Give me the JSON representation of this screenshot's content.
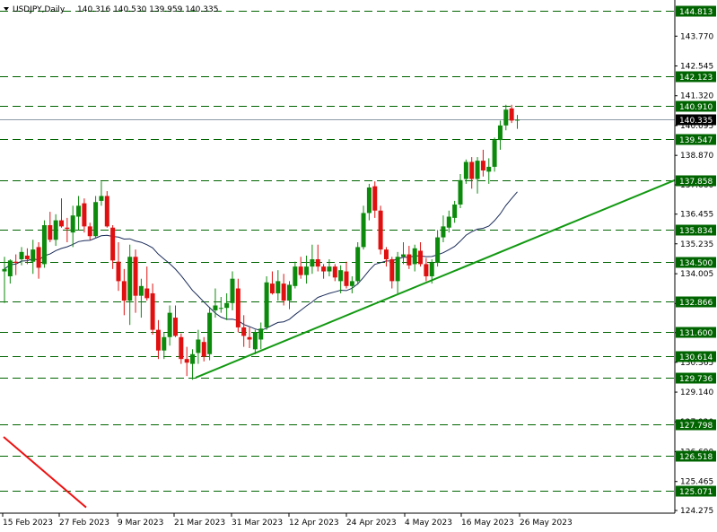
{
  "chart_data": {
    "type": "candlestick",
    "symbol_label": "USDJPY,Daily",
    "ohlc_label": "140.316 140.530 139.959 140.335",
    "y_ticks": [
      "143.770",
      "142.545",
      "141.320",
      "140.095",
      "138.870",
      "137.660",
      "136.455",
      "135.235",
      "134.005",
      "132.780",
      "131.585",
      "130.365",
      "129.140",
      "127.920",
      "126.690",
      "125.465",
      "124.275"
    ],
    "x_labels": [
      "15 Feb 2023",
      "27 Feb 2023",
      "9 Mar 2023",
      "21 Mar 2023",
      "31 Mar 2023",
      "12 Apr 2023",
      "24 Apr 2023",
      "4 May 2023",
      "16 May 2023",
      "26 May 2023"
    ],
    "levels": [
      "144.813",
      "142.123",
      "140.910",
      "139.547",
      "137.858",
      "135.834",
      "134.500",
      "132.866",
      "131.600",
      "130.614",
      "129.736",
      "127.798",
      "126.518",
      "125.071"
    ],
    "current_price": "140.335",
    "ylim": [
      124.1,
      145.0
    ],
    "colors": {
      "bull": "#0c8a0c",
      "bear": "#e01010",
      "level_line": "#006400",
      "level_label_bg": "#006400",
      "trendline_up": "#119911",
      "trendline_down": "#ee1111",
      "ma": "#1b2c5a",
      "current_bg": "#000000",
      "axis": "#000000"
    },
    "candles": [
      [
        134.1,
        134.7,
        132.8,
        134.2
      ],
      [
        133.9,
        134.6,
        133.6,
        134.55
      ],
      [
        134.5,
        134.8,
        133.95,
        134.45
      ],
      [
        134.6,
        135.1,
        134.35,
        134.9
      ],
      [
        134.75,
        135.05,
        134.4,
        134.6
      ],
      [
        134.5,
        135.4,
        134.0,
        135.0
      ],
      [
        135.1,
        135.3,
        133.8,
        134.25
      ],
      [
        134.4,
        136.2,
        134.25,
        136.0
      ],
      [
        136.0,
        136.55,
        135.3,
        135.4
      ],
      [
        135.4,
        136.45,
        135.15,
        136.2
      ],
      [
        136.2,
        137.1,
        135.9,
        135.95
      ],
      [
        135.9,
        136.3,
        135.3,
        135.85
      ],
      [
        135.7,
        136.8,
        135.1,
        136.4
      ],
      [
        136.35,
        137.2,
        135.8,
        136.8
      ],
      [
        136.9,
        137.1,
        135.7,
        135.95
      ],
      [
        135.95,
        136.1,
        135.4,
        135.55
      ],
      [
        135.55,
        137.2,
        135.45,
        136.95
      ],
      [
        137.0,
        137.8,
        136.8,
        137.2
      ],
      [
        137.2,
        137.4,
        135.9,
        135.95
      ],
      [
        135.9,
        136.0,
        134.2,
        134.55
      ],
      [
        134.5,
        135.3,
        133.3,
        133.7
      ],
      [
        133.7,
        134.2,
        132.3,
        132.9
      ],
      [
        132.9,
        135.2,
        131.9,
        134.7
      ],
      [
        134.7,
        135.0,
        132.4,
        133.1
      ],
      [
        133.1,
        133.8,
        132.2,
        133.5
      ],
      [
        133.4,
        134.3,
        132.9,
        133.0
      ],
      [
        133.2,
        133.6,
        131.5,
        131.7
      ],
      [
        131.7,
        132.1,
        130.5,
        130.85
      ],
      [
        130.85,
        131.6,
        130.5,
        131.4
      ],
      [
        131.4,
        132.7,
        131.05,
        132.4
      ],
      [
        132.2,
        132.7,
        131.4,
        131.45
      ],
      [
        131.4,
        131.55,
        130.3,
        130.5
      ],
      [
        130.5,
        131.0,
        129.8,
        130.35
      ],
      [
        130.3,
        130.9,
        129.65,
        130.7
      ],
      [
        130.75,
        131.7,
        130.3,
        131.3
      ],
      [
        131.2,
        131.4,
        130.4,
        130.6
      ],
      [
        130.7,
        132.6,
        130.45,
        132.4
      ],
      [
        132.5,
        133.4,
        132.2,
        132.7
      ],
      [
        132.6,
        133.05,
        132.4,
        132.6
      ],
      [
        132.6,
        133.2,
        132.1,
        132.8
      ],
      [
        132.8,
        134.1,
        132.5,
        133.8
      ],
      [
        133.4,
        133.8,
        131.6,
        131.8
      ],
      [
        131.8,
        132.3,
        131.0,
        131.45
      ],
      [
        131.4,
        131.8,
        130.95,
        131.3
      ],
      [
        130.9,
        131.7,
        130.7,
        131.6
      ],
      [
        131.3,
        132.0,
        130.9,
        131.75
      ],
      [
        131.8,
        133.9,
        131.7,
        133.65
      ],
      [
        133.6,
        134.1,
        133.15,
        133.2
      ],
      [
        133.2,
        134.15,
        132.9,
        133.7
      ],
      [
        133.6,
        134.0,
        132.7,
        132.9
      ],
      [
        132.9,
        133.7,
        132.55,
        133.55
      ],
      [
        133.5,
        134.5,
        133.4,
        134.3
      ],
      [
        134.3,
        134.7,
        133.8,
        133.95
      ],
      [
        133.95,
        134.75,
        133.6,
        134.3
      ],
      [
        134.3,
        135.2,
        134.0,
        134.6
      ],
      [
        134.6,
        135.2,
        134.1,
        134.3
      ],
      [
        134.3,
        134.4,
        133.8,
        134.1
      ],
      [
        134.1,
        134.6,
        133.9,
        134.3
      ],
      [
        134.3,
        134.4,
        133.7,
        133.85
      ],
      [
        133.7,
        134.35,
        133.2,
        134.15
      ],
      [
        134.1,
        134.5,
        133.4,
        133.5
      ],
      [
        133.5,
        133.9,
        133.2,
        133.7
      ],
      [
        133.7,
        135.3,
        133.55,
        135.1
      ],
      [
        135.1,
        136.8,
        135.0,
        136.5
      ],
      [
        136.5,
        137.7,
        136.2,
        137.55
      ],
      [
        137.6,
        137.8,
        136.3,
        136.6
      ],
      [
        136.6,
        136.8,
        134.8,
        135.0
      ],
      [
        135.0,
        135.1,
        134.3,
        134.6
      ],
      [
        134.6,
        134.7,
        133.4,
        133.7
      ],
      [
        133.7,
        134.9,
        133.2,
        134.7
      ],
      [
        134.7,
        135.3,
        134.4,
        134.8
      ],
      [
        134.8,
        135.15,
        134.2,
        134.35
      ],
      [
        134.4,
        135.2,
        134.1,
        135.05
      ],
      [
        134.95,
        135.3,
        134.3,
        134.4
      ],
      [
        134.4,
        134.65,
        133.7,
        133.9
      ],
      [
        133.9,
        134.6,
        133.6,
        134.45
      ],
      [
        134.45,
        135.8,
        134.3,
        135.5
      ],
      [
        135.5,
        136.4,
        135.3,
        135.95
      ],
      [
        135.9,
        136.6,
        135.7,
        136.35
      ],
      [
        136.3,
        137.0,
        136.1,
        136.85
      ],
      [
        136.85,
        138.1,
        136.7,
        137.85
      ],
      [
        137.9,
        138.7,
        137.7,
        138.6
      ],
      [
        138.6,
        138.8,
        137.5,
        137.9
      ],
      [
        137.9,
        138.8,
        137.3,
        138.65
      ],
      [
        138.65,
        139.1,
        138.0,
        138.25
      ],
      [
        138.2,
        138.75,
        137.7,
        138.4
      ],
      [
        138.4,
        139.6,
        138.2,
        139.5
      ],
      [
        139.5,
        140.3,
        139.1,
        140.1
      ],
      [
        140.1,
        140.95,
        139.9,
        140.75
      ],
      [
        140.8,
        140.95,
        140.2,
        140.3
      ],
      [
        140.316,
        140.53,
        139.959,
        140.335
      ]
    ],
    "ma_period": 20
  }
}
